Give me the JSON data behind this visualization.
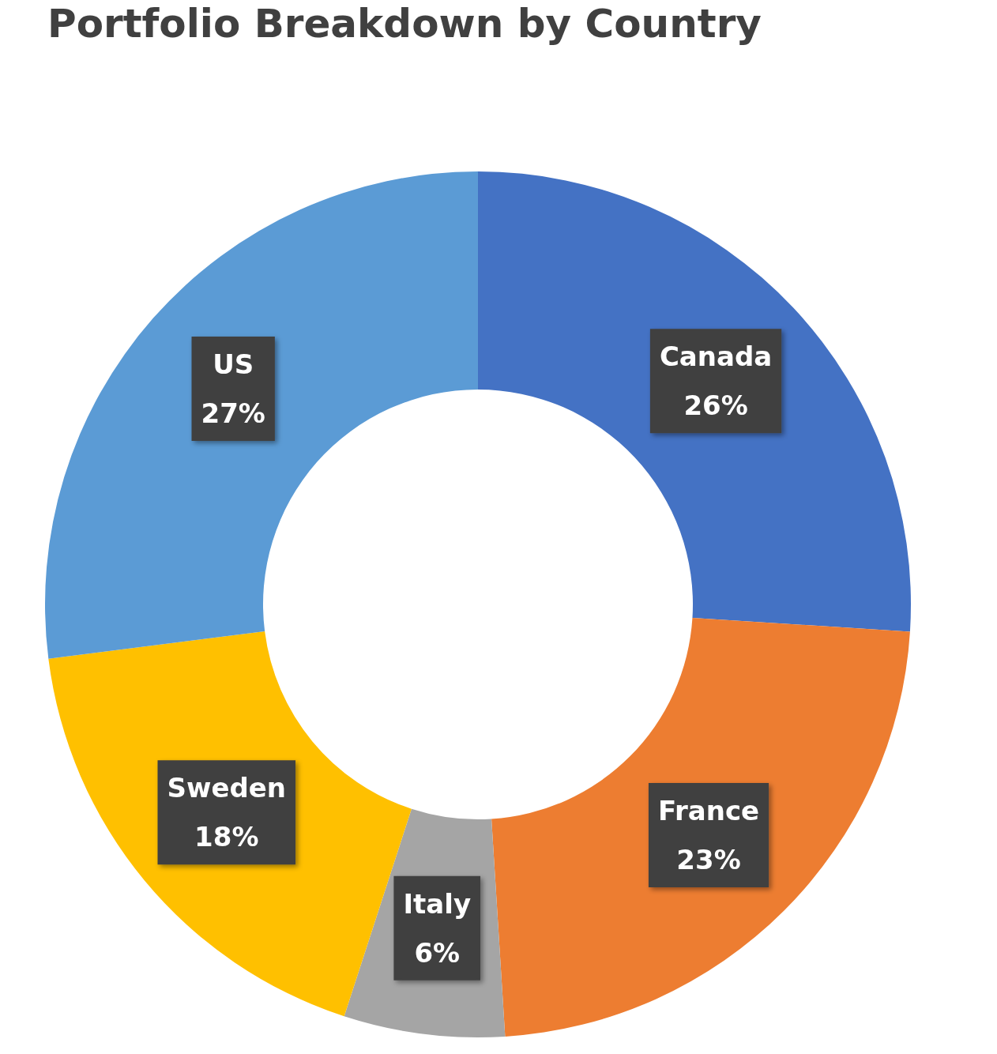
{
  "chart_data": {
    "type": "donut",
    "title": "Portfolio Breakdown by Country",
    "categories": [
      "Canada",
      "France",
      "Italy",
      "Sweden",
      "US"
    ],
    "values": [
      26,
      23,
      6,
      18,
      27
    ],
    "colors": [
      "#4472c4",
      "#ed7d31",
      "#a5a5a5",
      "#ffc000",
      "#5b9bd5"
    ],
    "value_labels": [
      "26%",
      "23%",
      "6%",
      "18%",
      "27%"
    ],
    "legend": false
  }
}
